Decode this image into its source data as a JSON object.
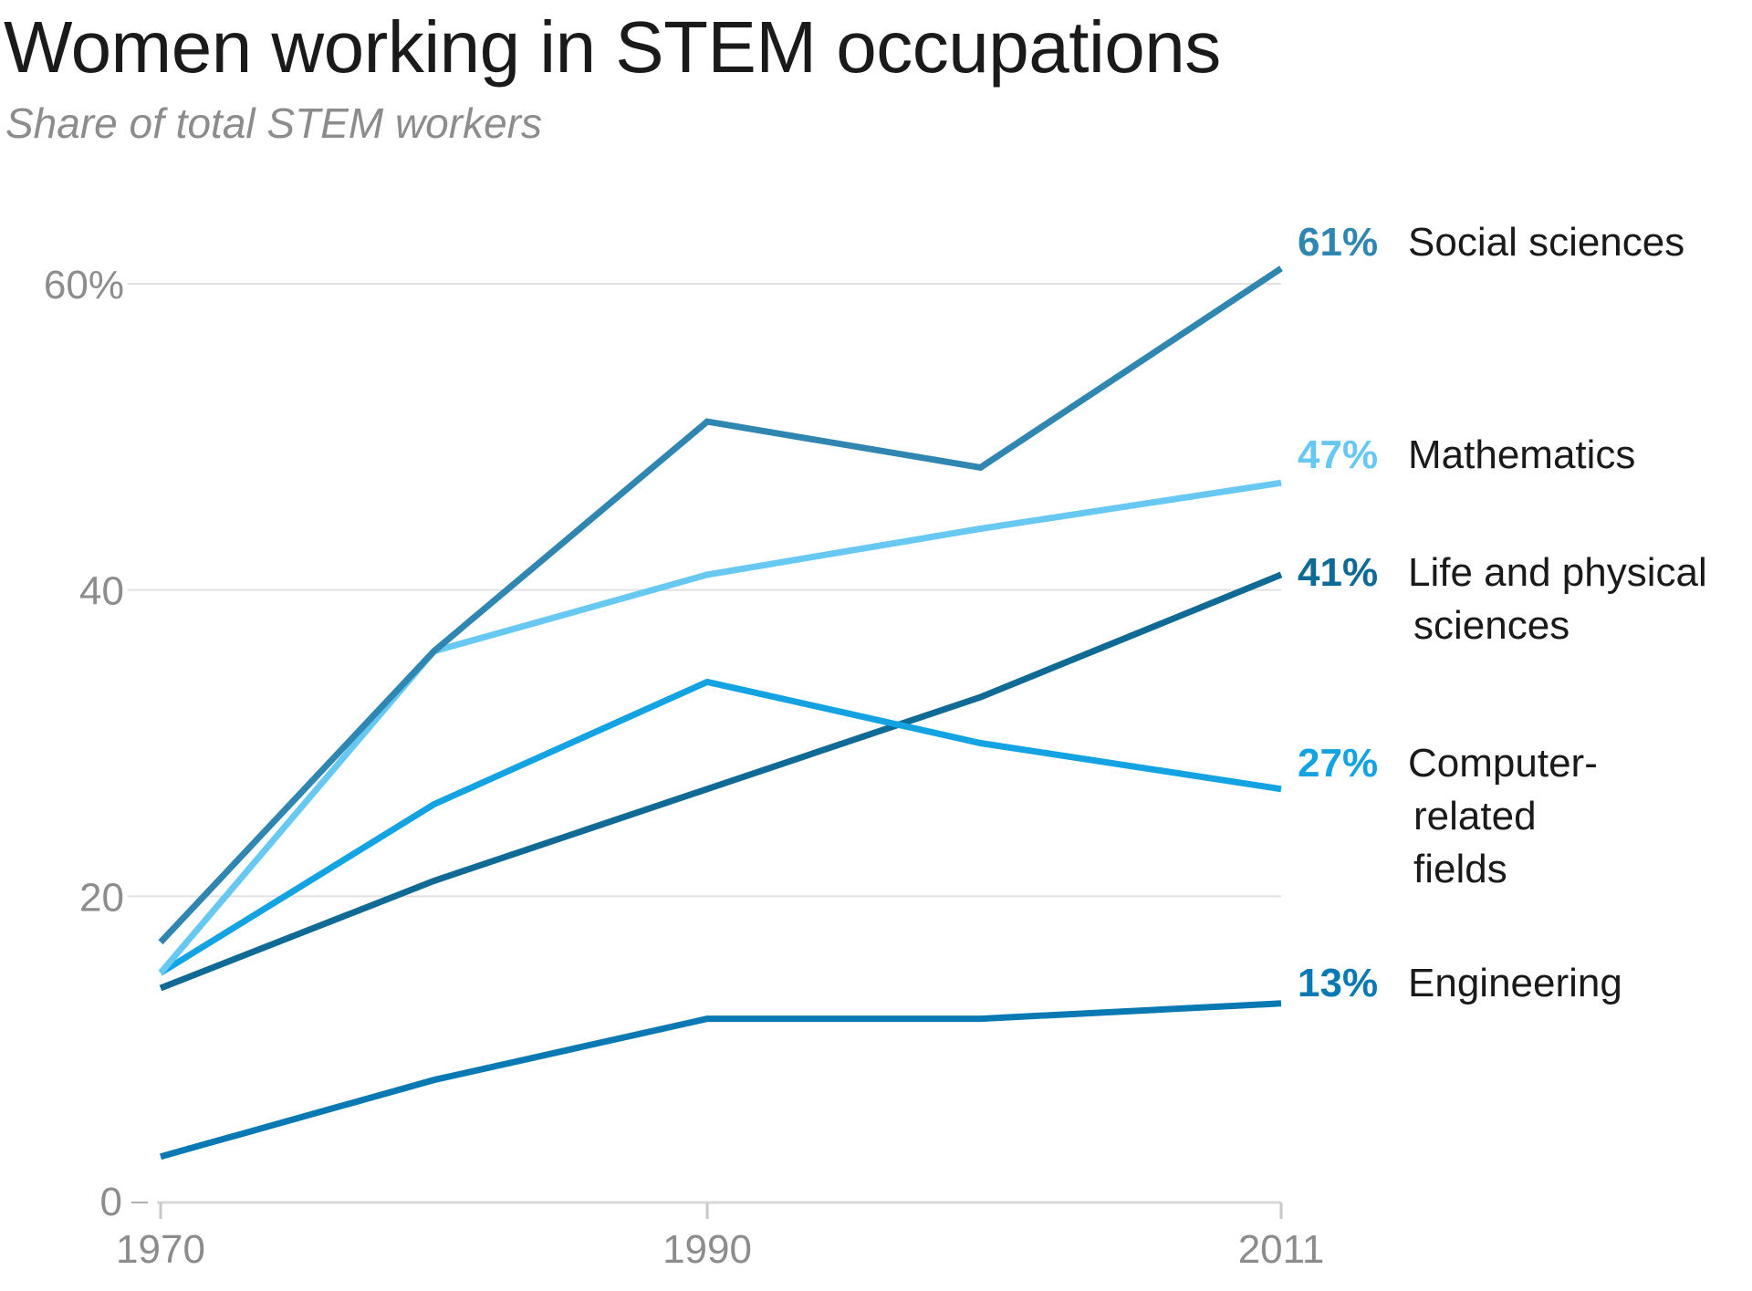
{
  "chart_data": {
    "type": "line",
    "title": "Women working in STEM occupations",
    "subtitle": "Share of total STEM workers",
    "xlabel": "",
    "ylabel": "",
    "x": [
      1970,
      1980,
      1990,
      2000,
      2011
    ],
    "x_tick_labels": [
      "1970",
      "1990",
      "2011"
    ],
    "x_tick_values": [
      1970,
      1990,
      2011
    ],
    "xlim": [
      1970,
      2011
    ],
    "y_tick_labels": [
      "0",
      "20",
      "40",
      "60%"
    ],
    "y_tick_values": [
      0,
      20,
      40,
      60
    ],
    "ylim": [
      0,
      60
    ],
    "grid": true,
    "series": [
      {
        "name": "Social sciences",
        "name_lines": [
          "Social sciences"
        ],
        "end_label": "61%",
        "color": "#2f86b0",
        "values": [
          17,
          36,
          51,
          48,
          61
        ]
      },
      {
        "name": "Mathematics",
        "name_lines": [
          "Mathematics"
        ],
        "end_label": "47%",
        "color": "#67c8f2",
        "values": [
          15,
          36,
          41,
          44,
          47
        ]
      },
      {
        "name": "Life and physical sciences",
        "name_lines": [
          "Life and physical",
          "sciences"
        ],
        "end_label": "41%",
        "color": "#0f6a95",
        "values": [
          14,
          21,
          27,
          33,
          41
        ]
      },
      {
        "name": "Computer-related fields",
        "name_lines": [
          "Computer-",
          "related",
          "fields"
        ],
        "end_label": "27%",
        "color": "#13a3e3",
        "values": [
          15,
          26,
          34,
          30,
          27
        ]
      },
      {
        "name": "Engineering",
        "name_lines": [
          "Engineering"
        ],
        "end_label": "13%",
        "color": "#0879b3",
        "values": [
          3,
          8,
          12,
          12,
          13
        ]
      }
    ]
  }
}
